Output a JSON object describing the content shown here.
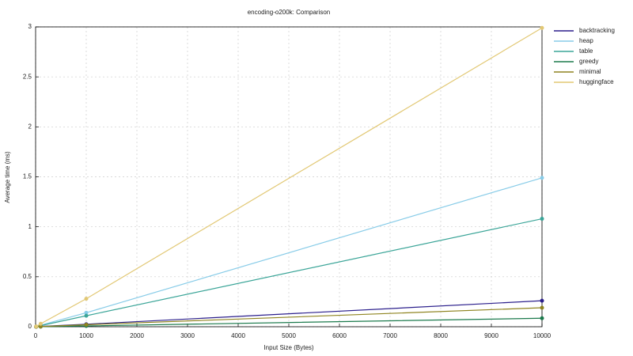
{
  "chart_data": {
    "type": "line",
    "title": "encoding-o200k: Comparison",
    "xlabel": "Input Size (Bytes)",
    "ylabel": "Average time (ms)",
    "x": [
      10,
      100,
      1000,
      10000
    ],
    "series": [
      {
        "name": "backtracking",
        "color": "#2b1f8c",
        "values": [
          0.0003,
          0.003,
          0.025,
          0.26
        ]
      },
      {
        "name": "heap",
        "color": "#88cce8",
        "values": [
          0.0015,
          0.015,
          0.14,
          1.49
        ]
      },
      {
        "name": "table",
        "color": "#3ba598",
        "values": [
          0.0011,
          0.011,
          0.11,
          1.08
        ]
      },
      {
        "name": "greedy",
        "color": "#1b7a4c",
        "values": [
          0.0001,
          0.001,
          0.008,
          0.085
        ]
      },
      {
        "name": "minimal",
        "color": "#8f8420",
        "values": [
          0.0002,
          0.002,
          0.02,
          0.19
        ]
      },
      {
        "name": "huggingface",
        "color": "#e2c874",
        "values": [
          0.003,
          0.03,
          0.28,
          2.99
        ]
      }
    ],
    "xlim": [
      0,
      10000
    ],
    "xticks": [
      0,
      1000,
      2000,
      3000,
      4000,
      5000,
      6000,
      7000,
      8000,
      9000,
      10000
    ],
    "ylim": [
      0,
      3
    ],
    "yticks": [
      0,
      0.5,
      1,
      1.5,
      2,
      2.5,
      3
    ],
    "grid": true,
    "legend": "right"
  }
}
